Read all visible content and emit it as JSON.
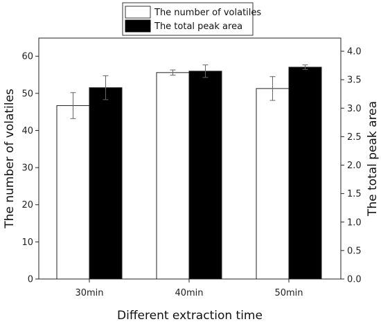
{
  "chart_data": {
    "type": "bar",
    "categories": [
      "30min",
      "40min",
      "50min"
    ],
    "xlabel": "Different extraction time",
    "ylabel_left": "The number of volatiles",
    "ylabel_right": "The total peak area",
    "ylim_left": [
      0,
      65
    ],
    "ylim_right": [
      0,
      4.24
    ],
    "yticks_left": [
      0,
      10,
      20,
      30,
      40,
      50,
      60
    ],
    "yticks_right": [
      0.0,
      0.5,
      1.0,
      1.5,
      2.0,
      2.5,
      3.0,
      3.5,
      4.0
    ],
    "yticks_right_labels": [
      "0.0",
      "0.5",
      "1.0",
      "1.5",
      "2.0",
      "2.5",
      "3.0",
      "3.5",
      "4.0"
    ],
    "series": [
      {
        "name": "The number of volatiles",
        "axis": "left",
        "fill": "#ffffff",
        "values": [
          46.7,
          55.6,
          51.3
        ],
        "errors": [
          3.5,
          0.7,
          3.2
        ]
      },
      {
        "name": "The total peak area",
        "axis": "right",
        "fill": "#000000",
        "values": [
          3.36,
          3.65,
          3.72
        ],
        "errors": [
          0.21,
          0.11,
          0.04
        ]
      }
    ],
    "legend": {
      "placement": "top-center",
      "entries": [
        "The number of volatiles",
        "The total peak area"
      ]
    },
    "grid": false
  }
}
